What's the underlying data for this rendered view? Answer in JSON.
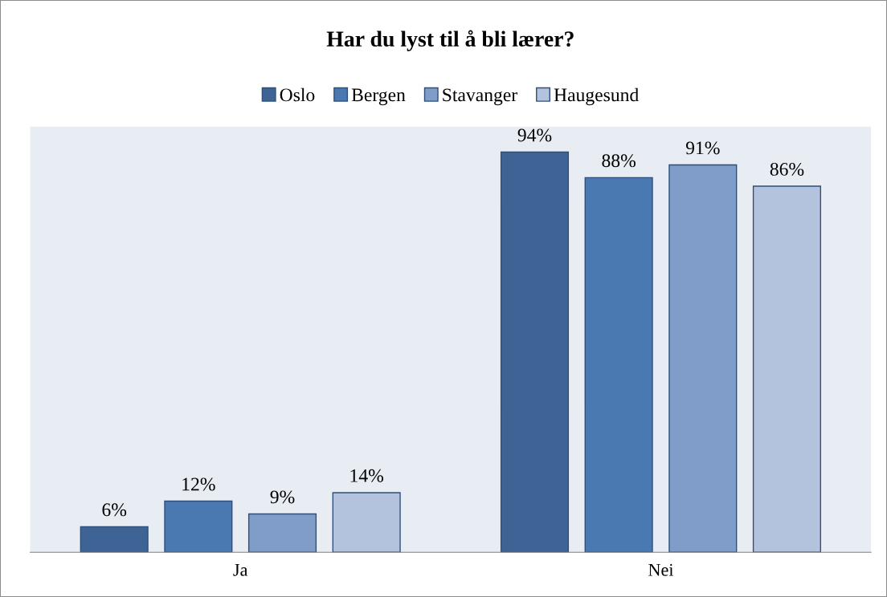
{
  "chart_data": {
    "type": "bar",
    "title": "Har du lyst til å bli lærer?",
    "categories": [
      "Ja",
      "Nei"
    ],
    "series": [
      {
        "name": "Oslo",
        "color": "#3e6495",
        "values": [
          6,
          94
        ],
        "value_labels": [
          "6%",
          "94%"
        ]
      },
      {
        "name": "Bergen",
        "color": "#4a78b0",
        "values": [
          12,
          88
        ],
        "value_labels": [
          "12%",
          "88%"
        ]
      },
      {
        "name": "Stavanger",
        "color": "#7f9dc8",
        "values": [
          9,
          91
        ],
        "value_labels": [
          "9%",
          "91%"
        ]
      },
      {
        "name": "Haugesund",
        "color": "#b4c3dd",
        "values": [
          14,
          86
        ],
        "value_labels": [
          "14%",
          "86%"
        ]
      }
    ],
    "ylim": [
      0,
      100
    ],
    "tick_labels": "x",
    "legend": "top",
    "grid": false
  }
}
